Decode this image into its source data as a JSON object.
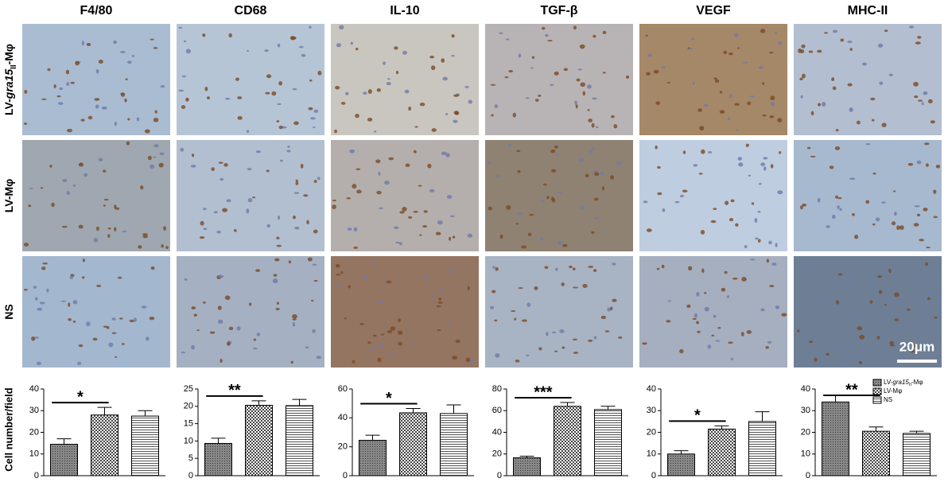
{
  "groups": [
    [
      "LV-",
      "gra15",
      "II",
      "-Mφ"
    ],
    [
      "LV-Mφ"
    ],
    [
      "NS"
    ]
  ],
  "y_axis_label": "Cell number/field",
  "scale_bar": "20μm",
  "chart_data": [
    {
      "type": "bar",
      "title": "F4/80",
      "values": [
        14.5,
        28,
        27.5
      ],
      "errors": [
        2.5,
        3.5,
        2.5
      ],
      "ylim": [
        0,
        40
      ],
      "yticks": [
        0,
        10,
        20,
        30,
        40
      ],
      "significance": {
        "label": "*",
        "from": 0,
        "to": 1
      }
    },
    {
      "type": "bar",
      "title": "CD68",
      "values": [
        9.3,
        20.3,
        20.2
      ],
      "errors": [
        1.5,
        1.3,
        1.8
      ],
      "ylim": [
        0,
        25
      ],
      "yticks": [
        0,
        5,
        10,
        15,
        20,
        25
      ],
      "significance": {
        "label": "**",
        "from": 0,
        "to": 1
      }
    },
    {
      "type": "bar",
      "title": "IL-10",
      "values": [
        24.5,
        43.5,
        43
      ],
      "errors": [
        3.5,
        3,
        6
      ],
      "ylim": [
        0,
        60
      ],
      "yticks": [
        0,
        20,
        40,
        60
      ],
      "significance": {
        "label": "*",
        "from": 0,
        "to": 1
      }
    },
    {
      "type": "bar",
      "title": "TGF-β",
      "values": [
        16.5,
        64,
        61
      ],
      "errors": [
        1.5,
        3.5,
        3
      ],
      "ylim": [
        0,
        80
      ],
      "yticks": [
        0,
        20,
        40,
        60,
        80
      ],
      "significance": {
        "label": "***",
        "from": 0,
        "to": 1
      }
    },
    {
      "type": "bar",
      "title": "VEGF",
      "values": [
        10,
        21.5,
        25
      ],
      "errors": [
        1.5,
        1.5,
        4.5
      ],
      "ylim": [
        0,
        40
      ],
      "yticks": [
        0,
        10,
        20,
        30,
        40
      ],
      "significance": {
        "label": "*",
        "from": 0,
        "to": 1
      }
    },
    {
      "type": "bar",
      "title": "MHC-II",
      "values": [
        34,
        20.5,
        19.5
      ],
      "errors": [
        3,
        2,
        1
      ],
      "ylim": [
        0,
        40
      ],
      "yticks": [
        0,
        10,
        20,
        30,
        40
      ],
      "significance": {
        "label": "**",
        "from": 0,
        "to": 1
      },
      "legend": true
    }
  ]
}
